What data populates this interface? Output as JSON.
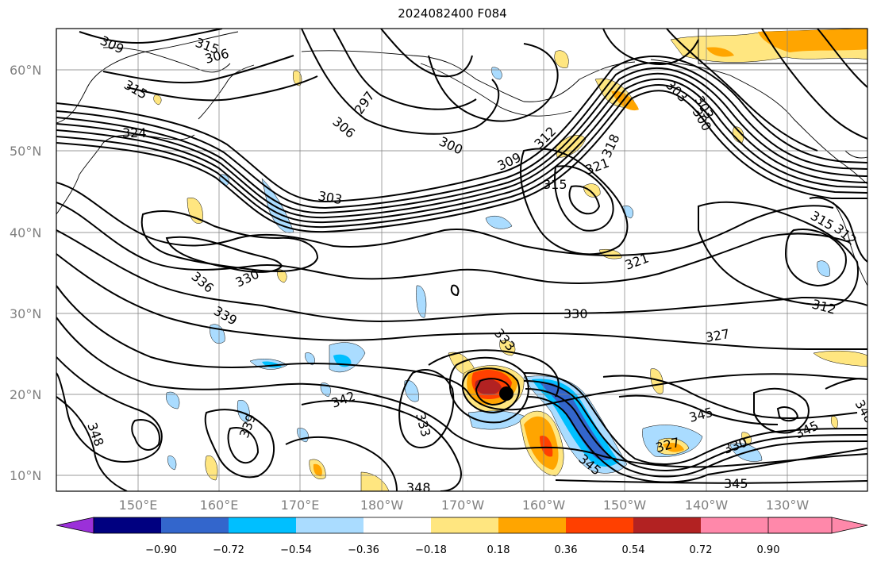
{
  "title": "2024082400 F084",
  "lat_labels": [
    "60°N",
    "50°N",
    "40°N",
    "30°N",
    "20°N",
    "10°N"
  ],
  "lon_labels": [
    "150°E",
    "160°E",
    "170°E",
    "180°W",
    "170°W",
    "160°W",
    "150°W",
    "140°W",
    "130°W"
  ],
  "colorbar": {
    "ticks": [
      "−0.90",
      "−0.72",
      "−0.54",
      "−0.36",
      "−0.18",
      "0.18",
      "0.36",
      "0.54",
      "0.72",
      "0.90"
    ],
    "colors": [
      "#9b30d9",
      "#000080",
      "#3366cc",
      "#00bfff",
      "#aadcff",
      "#ffffff",
      "#ffe680",
      "#ffa500",
      "#ff4000",
      "#b22222",
      "#ff88aa"
    ]
  },
  "contour_labels": [
    "309",
    "315",
    "306",
    "315",
    "297",
    "306",
    "300",
    "303",
    "309",
    "312",
    "318",
    "321",
    "315",
    "303",
    "300",
    "324",
    "303",
    "315",
    "312",
    "336",
    "330",
    "321",
    "339",
    "330",
    "312",
    "333",
    "327",
    "342",
    "333",
    "339",
    "345",
    "345",
    "327",
    "330",
    "348",
    "345",
    "348",
    "345",
    "348"
  ],
  "marker": "storm-center-dot"
}
